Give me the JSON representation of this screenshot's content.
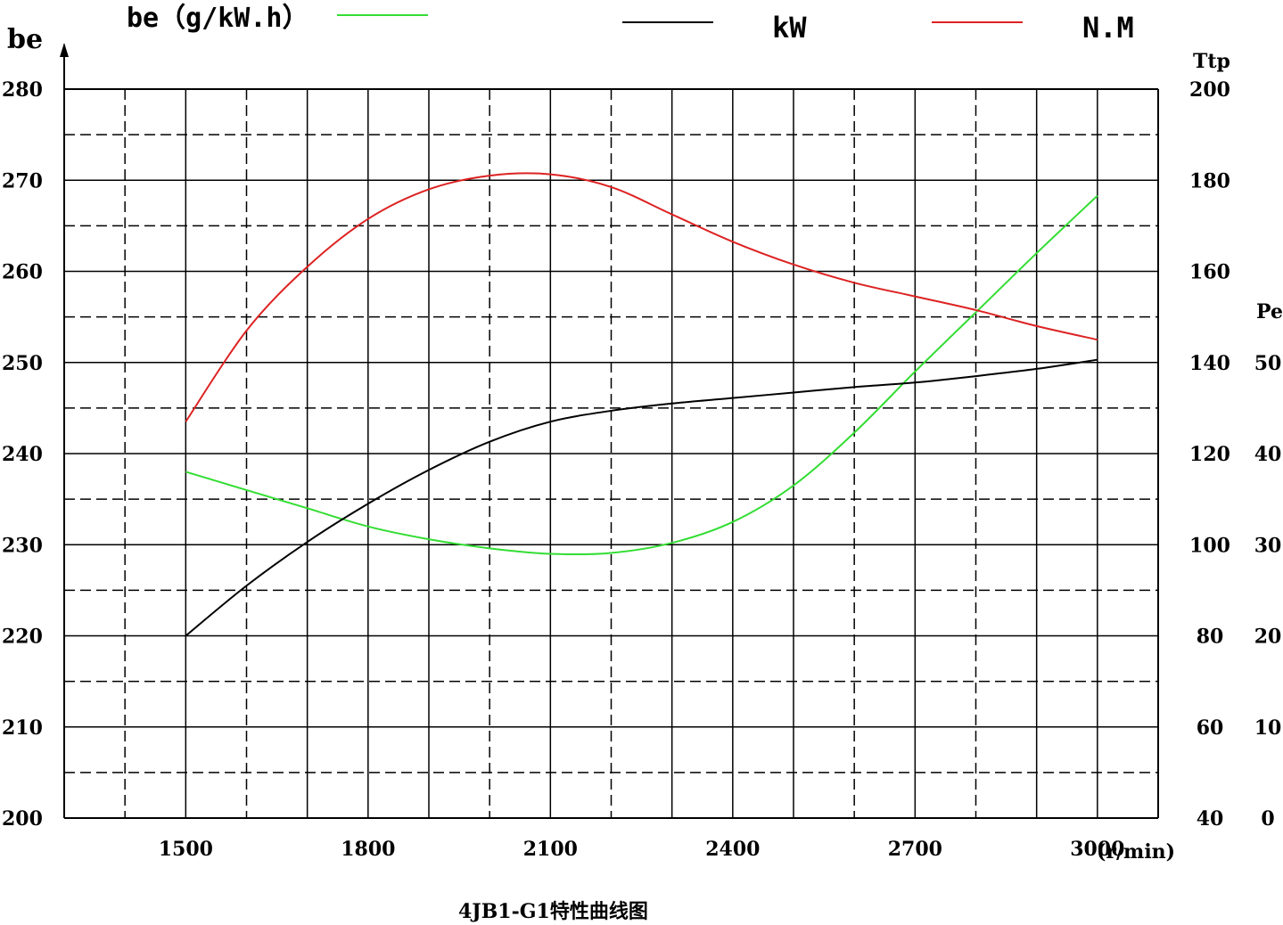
{
  "chart_data": {
    "type": "line",
    "title": "4JB1-G1特性曲线图",
    "x": {
      "label": "(r/min)",
      "range": [
        1300,
        3100
      ],
      "ticks": [
        1500,
        1800,
        2100,
        2400,
        2700,
        3000
      ],
      "tick_labels": [
        "1500",
        "1800",
        "2100",
        "2400",
        "2700",
        "3000"
      ]
    },
    "axes": {
      "be": {
        "label": "be",
        "range": [
          200,
          280
        ],
        "ticks": [
          200,
          210,
          220,
          230,
          240,
          250,
          260,
          270,
          280
        ],
        "tick_labels": [
          "200",
          "210",
          "220",
          "230",
          "240",
          "250",
          "260",
          "270",
          "280"
        ]
      },
      "ttp": {
        "label": "Ttp",
        "range": [
          40,
          200
        ],
        "ticks": [
          40,
          60,
          80,
          100,
          120,
          140,
          160,
          180,
          200
        ],
        "tick_labels": [
          "40",
          "60",
          "80",
          "100",
          "120",
          "140",
          "160",
          "180",
          "200"
        ]
      },
      "pe": {
        "label": "Pe",
        "range": [
          0,
          80
        ],
        "ticks": [
          0,
          10,
          20,
          30,
          40,
          50
        ],
        "tick_labels": [
          "0",
          "10",
          "20",
          "30",
          "40",
          "50"
        ]
      }
    },
    "grid": true,
    "legend": [
      {
        "label": "be（g/kW.h）",
        "color": "#33dd33"
      },
      {
        "label": "kW",
        "color": "#000000"
      },
      {
        "label": "N.M",
        "color": "#dd2222"
      }
    ],
    "series": [
      {
        "name": "be（g/kW.h）",
        "axis": "be",
        "color": "#33dd33",
        "x": [
          1500,
          1600,
          1700,
          1800,
          1900,
          2000,
          2100,
          2200,
          2300,
          2400,
          2500,
          2600,
          2700,
          2800,
          2900,
          3000
        ],
        "y": [
          238,
          236,
          234,
          232,
          230.6,
          229.6,
          229,
          229.1,
          230.2,
          232.5,
          236.5,
          242.3,
          249,
          255.5,
          262,
          268.3
        ]
      },
      {
        "name": "kW",
        "axis": "pe",
        "color": "#000000",
        "x": [
          1500,
          1600,
          1700,
          1800,
          1900,
          2000,
          2100,
          2200,
          2300,
          2400,
          2500,
          2600,
          2700,
          2800,
          2900,
          3000
        ],
        "y": [
          20,
          25.5,
          30.3,
          34.5,
          38.2,
          41.3,
          43.5,
          44.7,
          45.5,
          46.1,
          46.7,
          47.3,
          47.8,
          48.5,
          49.3,
          50.3
        ]
      },
      {
        "name": "N.M",
        "axis": "ttp",
        "color": "#dd2222",
        "x": [
          1500,
          1600,
          1700,
          1800,
          1900,
          2000,
          2100,
          2200,
          2300,
          2400,
          2500,
          2600,
          2700,
          2800,
          2900,
          3000
        ],
        "y": [
          127,
          147,
          161,
          171.5,
          178,
          181,
          181.3,
          178.5,
          172.5,
          166.5,
          161.5,
          157.5,
          154.5,
          151.5,
          148,
          145
        ]
      }
    ]
  }
}
